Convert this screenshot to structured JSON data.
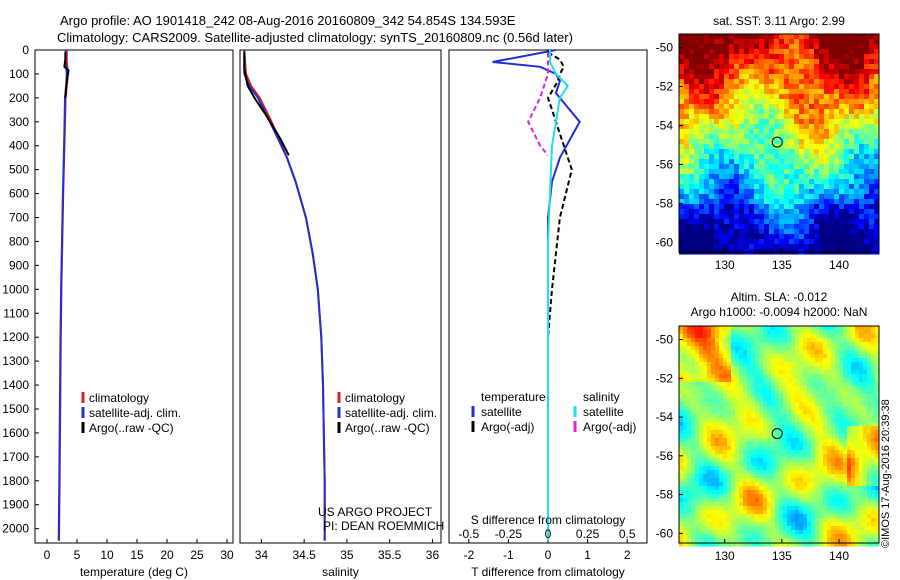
{
  "header": {
    "line1": "Argo profile: AO 1901418_242 08-Aug-2016 20160809_342 54.854S 134.593E",
    "line2": "Climatology: CARS2009. Satellite-adjusted climatology: synTS_20160809.nc (0.56d later)"
  },
  "credit": "©IMOS 17-Aug-2016 20:39:38",
  "project": {
    "line1": "US ARGO PROJECT",
    "line2": "PI: DEAN ROEMMICH"
  },
  "colors": {
    "climatology": "#e41a1c",
    "satellite": "#1f2fd0",
    "argo": "#000000",
    "salinity_satellite": "#22e0e8",
    "salinity_argo": "#e020e0"
  },
  "chart_data": [
    {
      "type": "line",
      "name": "temperature-profile",
      "xlabel": "temperature (deg C)",
      "ylabel": "",
      "xlim": [
        -2,
        31
      ],
      "ylim": [
        2060,
        0
      ],
      "x_ticks": [
        0,
        5,
        10,
        15,
        20,
        25,
        30
      ],
      "y_ticks": [
        0,
        100,
        200,
        300,
        400,
        500,
        600,
        700,
        800,
        900,
        1000,
        1100,
        1200,
        1300,
        1400,
        1500,
        1600,
        1700,
        1800,
        1900,
        2000
      ],
      "legend": [
        "climatology",
        "satellite-adj. clim.",
        "Argo(..raw -QC)"
      ],
      "legend_placement": "bottom-right",
      "series": [
        {
          "name": "climatology",
          "color": "#e41a1c",
          "x": [
            3.3,
            3.3,
            3.5,
            3.3,
            3.1,
            2.9,
            2.7,
            2.55,
            2.4,
            2.3,
            2.2,
            2.1,
            2.0
          ],
          "y": [
            0,
            50,
            100,
            150,
            200,
            400,
            600,
            800,
            1000,
            1200,
            1500,
            1800,
            2050
          ]
        },
        {
          "name": "satellite-adj. clim.",
          "color": "#1f2fd0",
          "x": [
            3.1,
            3.1,
            3.3,
            3.2,
            3.0,
            2.85,
            2.65,
            2.5,
            2.35,
            2.25,
            2.15,
            2.05,
            1.95
          ],
          "y": [
            0,
            50,
            100,
            150,
            200,
            400,
            600,
            800,
            1000,
            1200,
            1500,
            1800,
            2050
          ]
        },
        {
          "name": "Argo(..raw -QC)",
          "color": "#000000",
          "x": [
            3.05,
            3.05,
            2.9,
            3.6,
            3.4,
            3.2,
            3.05
          ],
          "y": [
            10,
            40,
            70,
            85,
            110,
            150,
            200
          ]
        }
      ]
    },
    {
      "type": "line",
      "name": "salinity-profile",
      "xlabel": "salinity",
      "xlim": [
        33.75,
        36.1
      ],
      "ylim": [
        2060,
        0
      ],
      "x_ticks": [
        34,
        34.5,
        35,
        35.5,
        36
      ],
      "legend": [
        "climatology",
        "satellite-adj. clim.",
        "Argo(..raw -QC)"
      ],
      "legend_placement": "bottom-right",
      "series": [
        {
          "name": "climatology",
          "color": "#e41a1c",
          "x": [
            33.8,
            33.82,
            33.88,
            33.98,
            34.12,
            34.3,
            34.4,
            34.52,
            34.6,
            34.66,
            34.7,
            34.72,
            34.73,
            34.74,
            34.74
          ],
          "y": [
            0,
            100,
            150,
            200,
            300,
            450,
            550,
            700,
            850,
            1000,
            1200,
            1400,
            1600,
            1800,
            2050
          ]
        },
        {
          "name": "satellite-adj. clim.",
          "color": "#1f2fd0",
          "x": [
            33.8,
            33.8,
            33.86,
            33.96,
            34.1,
            34.3,
            34.4,
            34.52,
            34.6,
            34.66,
            34.7,
            34.72,
            34.73,
            34.74,
            34.74
          ],
          "y": [
            0,
            100,
            150,
            200,
            300,
            450,
            550,
            700,
            850,
            1000,
            1200,
            1400,
            1600,
            1800,
            2050
          ]
        },
        {
          "name": "Argo(..raw -QC)",
          "color": "#000000",
          "x": [
            33.8,
            33.8,
            33.84,
            33.92,
            34.05,
            34.22,
            34.32
          ],
          "y": [
            10,
            80,
            150,
            200,
            270,
            370,
            440
          ]
        }
      ]
    },
    {
      "type": "line",
      "name": "difference-profile",
      "xlabel": "T difference from climatology",
      "x2label": "S difference from climatology",
      "xlim": [
        -2.5,
        2.5
      ],
      "ylim": [
        2060,
        0
      ],
      "x_ticks": [
        -2,
        -1,
        0,
        1,
        2
      ],
      "x2_ticks": [
        -0.5,
        -0.25,
        0,
        0.25,
        0.5
      ],
      "legend_title_t": "temperature",
      "legend_title_s": "salinity",
      "legend": [
        "satellite",
        "Argo(-adj)",
        "satellite",
        "Argo(-adj)"
      ],
      "series": [
        {
          "name": "satellite",
          "group": "temperature",
          "color": "#1f2fd0",
          "x": [
            0.2,
            -1.4,
            -0.2,
            0.2,
            0.3,
            0.2,
            0.8,
            0.3,
            0.1,
            0.0,
            0.0,
            0.0
          ],
          "y": [
            0,
            50,
            70,
            100,
            130,
            180,
            300,
            450,
            550,
            700,
            1000,
            1200
          ]
        },
        {
          "name": "Argo(-adj)",
          "group": "temperature",
          "color": "#000000",
          "x": [
            0.0,
            0.3,
            0.4,
            0.3,
            0.25,
            0.0,
            0.1,
            0.3,
            0.6,
            0.3,
            0.1,
            0.0
          ],
          "y": [
            10,
            40,
            70,
            100,
            130,
            200,
            250,
            350,
            500,
            700,
            1000,
            1200
          ]
        },
        {
          "name": "satellite",
          "group": "salinity",
          "color": "#22e0e8",
          "x": [
            0.05,
            0.05,
            0.2,
            0.5,
            0.3,
            0.1,
            0.0,
            0.0,
            0.0,
            0.0
          ],
          "y": [
            0,
            50,
            100,
            150,
            200,
            400,
            800,
            1200,
            1600,
            2050
          ]
        },
        {
          "name": "Argo(-adj)",
          "group": "salinity",
          "color": "#e020e0",
          "x": [
            0.0,
            0.0,
            -0.2,
            -0.5,
            -0.2,
            0.0
          ],
          "y": [
            10,
            100,
            200,
            300,
            400,
            440
          ]
        }
      ]
    },
    {
      "type": "heatmap",
      "name": "sst-map",
      "title": "sat. SST: 3.11  Argo: 2.99",
      "xlim": [
        126,
        143.5
      ],
      "ylim": [
        -60.5,
        -49.3
      ],
      "x_ticks": [
        130,
        135,
        140
      ],
      "y_ticks": [
        -50,
        -52,
        -54,
        -56,
        -58,
        -60
      ],
      "marker": {
        "lon": 134.593,
        "lat": -54.854
      }
    },
    {
      "type": "heatmap",
      "name": "sla-map",
      "title": "Altim. SLA: -0.012",
      "subtitle": "Argo h1000: -0.0094 h2000: NaN",
      "xlim": [
        126,
        143.5
      ],
      "ylim": [
        -60.5,
        -49.3
      ],
      "x_ticks": [
        130,
        135,
        140
      ],
      "y_ticks": [
        -50,
        -52,
        -54,
        -56,
        -58,
        -60
      ],
      "marker": {
        "lon": 134.593,
        "lat": -54.854
      }
    }
  ]
}
